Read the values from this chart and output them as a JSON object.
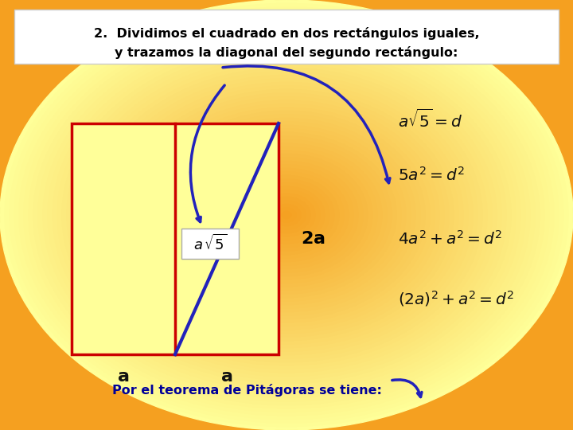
{
  "bg_color_center": "#FFFF99",
  "bg_color_edge": "#F5A020",
  "title_box_color": "#FFFFFF",
  "title_line1": "2.  Dividimos el cuadrado en dos rectángulos iguales,",
  "title_line2": "y trazamos la diagonal del segundo rectángulo:",
  "rect_color": "#CC0000",
  "rect_fill": "#FFDD88",
  "diagonal_color": "#2222BB",
  "arrow_color": "#2222BB",
  "eq1": "$a \\sqrt{5} = d$",
  "eq2": "$5a^{2} = d^{2}$",
  "eq3": "$4a^{2} + a^{2} = d^{2}$",
  "eq4": "$(2a)^{2} + a^{2} = d^{2}$",
  "bottom_text": "Por el teorema de Pitágoras se tiene:",
  "eq_color": "#111111",
  "label_color": "#111111"
}
